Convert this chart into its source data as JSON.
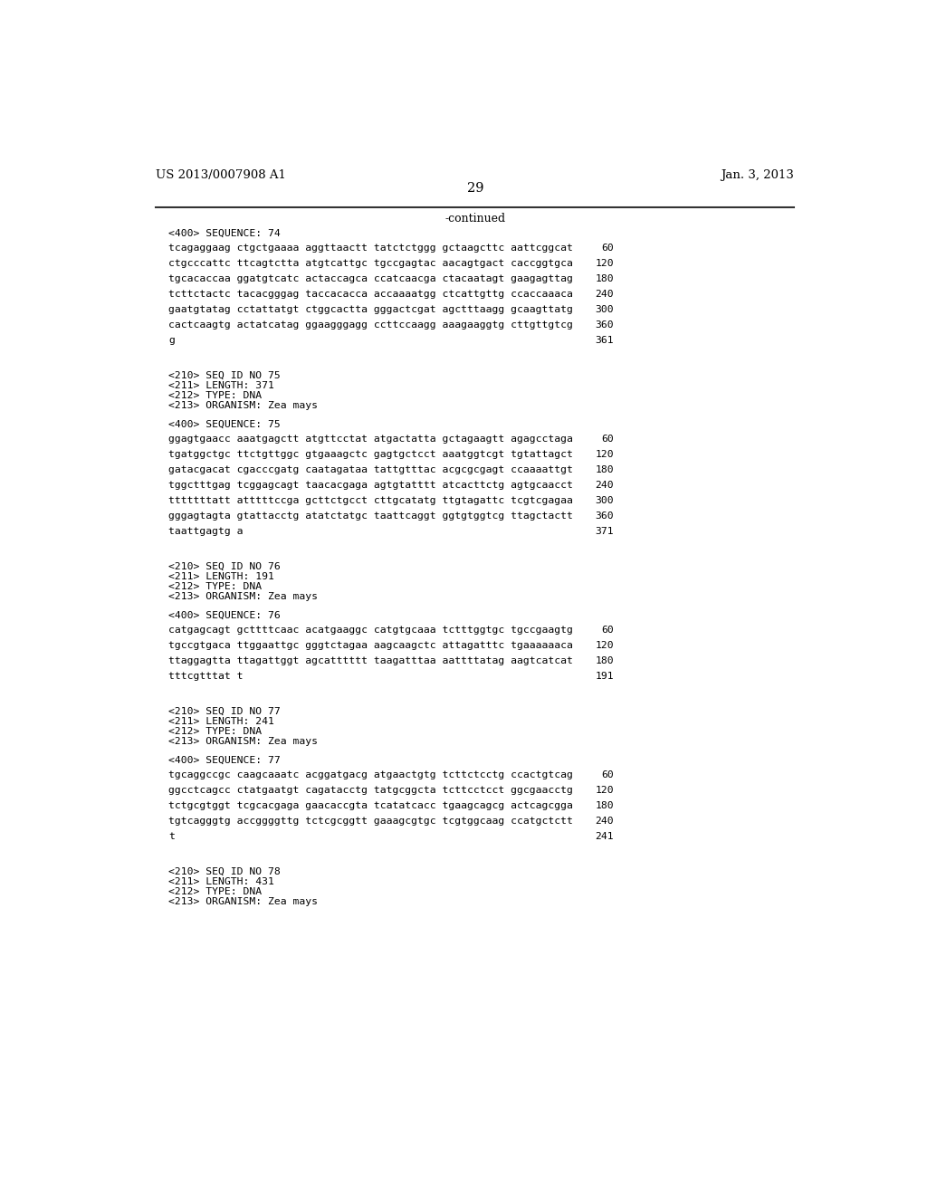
{
  "header_left": "US 2013/0007908 A1",
  "header_right": "Jan. 3, 2013",
  "page_number": "29",
  "continued_label": "-continued",
  "bg_color": "#ffffff",
  "text_color": "#000000",
  "content": [
    {
      "type": "seq_header",
      "text": "<400> SEQUENCE: 74"
    },
    {
      "type": "seq_line",
      "sequence": "tcagaggaag ctgctgaaaa aggttaactt tatctctggg gctaagcttc aattcggcat",
      "num": "60"
    },
    {
      "type": "seq_line",
      "sequence": "ctgcccattc ttcagtctta atgtcattgc tgccgagtac aacagtgact caccggtgca",
      "num": "120"
    },
    {
      "type": "seq_line",
      "sequence": "tgcacaccaa ggatgtcatc actaccagca ccatcaacga ctacaatagt gaagagttag",
      "num": "180"
    },
    {
      "type": "seq_line",
      "sequence": "tcttctactc tacacgggag taccacacca accaaaatgg ctcattgttg ccaccaaaca",
      "num": "240"
    },
    {
      "type": "seq_line",
      "sequence": "gaatgtatag cctattatgt ctggcactta gggactcgat agctttaagg gcaagttatg",
      "num": "300"
    },
    {
      "type": "seq_line",
      "sequence": "cactcaagtg actatcatag ggaagggagg ccttccaagg aaagaaggtg cttgttgtcg",
      "num": "360"
    },
    {
      "type": "seq_line",
      "sequence": "g",
      "num": "361"
    },
    {
      "type": "gap_large"
    },
    {
      "type": "meta_line",
      "text": "<210> SEQ ID NO 75"
    },
    {
      "type": "meta_line",
      "text": "<211> LENGTH: 371"
    },
    {
      "type": "meta_line",
      "text": "<212> TYPE: DNA"
    },
    {
      "type": "meta_line",
      "text": "<213> ORGANISM: Zea mays"
    },
    {
      "type": "gap_small"
    },
    {
      "type": "seq_header",
      "text": "<400> SEQUENCE: 75"
    },
    {
      "type": "seq_line",
      "sequence": "ggagtgaacc aaatgagctt atgttcctat atgactatta gctagaagtt agagcctaga",
      "num": "60"
    },
    {
      "type": "seq_line",
      "sequence": "tgatggctgc ttctgttggc gtgaaagctc gagtgctcct aaatggtcgt tgtattagct",
      "num": "120"
    },
    {
      "type": "seq_line",
      "sequence": "gatacgacat cgacccgatg caatagataa tattgtttac acgcgcgagt ccaaaattgt",
      "num": "180"
    },
    {
      "type": "seq_line",
      "sequence": "tggctttgag tcggagcagt taacacgaga agtgtatttt atcacttctg agtgcaacct",
      "num": "240"
    },
    {
      "type": "seq_line",
      "sequence": "tttttttatt atttttccga gcttctgcct cttgcatatg ttgtagattc tcgtcgagaa",
      "num": "300"
    },
    {
      "type": "seq_line",
      "sequence": "gggagtagta gtattacctg atatctatgc taattcaggt ggtgtggtcg ttagctactt",
      "num": "360"
    },
    {
      "type": "seq_line",
      "sequence": "taattgagtg a",
      "num": "371"
    },
    {
      "type": "gap_large"
    },
    {
      "type": "meta_line",
      "text": "<210> SEQ ID NO 76"
    },
    {
      "type": "meta_line",
      "text": "<211> LENGTH: 191"
    },
    {
      "type": "meta_line",
      "text": "<212> TYPE: DNA"
    },
    {
      "type": "meta_line",
      "text": "<213> ORGANISM: Zea mays"
    },
    {
      "type": "gap_small"
    },
    {
      "type": "seq_header",
      "text": "<400> SEQUENCE: 76"
    },
    {
      "type": "seq_line",
      "sequence": "catgagcagt gcttttcaac acatgaaggc catgtgcaaa tctttggtgc tgccgaagtg",
      "num": "60"
    },
    {
      "type": "seq_line",
      "sequence": "tgccgtgaca ttggaattgc gggtctagaa aagcaagctc attagatttc tgaaaaaaca",
      "num": "120"
    },
    {
      "type": "seq_line",
      "sequence": "ttaggagtta ttagattggt agcatttttt taagatttaa aattttatag aagtcatcat",
      "num": "180"
    },
    {
      "type": "seq_line",
      "sequence": "tttcgtttat t",
      "num": "191"
    },
    {
      "type": "gap_large"
    },
    {
      "type": "meta_line",
      "text": "<210> SEQ ID NO 77"
    },
    {
      "type": "meta_line",
      "text": "<211> LENGTH: 241"
    },
    {
      "type": "meta_line",
      "text": "<212> TYPE: DNA"
    },
    {
      "type": "meta_line",
      "text": "<213> ORGANISM: Zea mays"
    },
    {
      "type": "gap_small"
    },
    {
      "type": "seq_header",
      "text": "<400> SEQUENCE: 77"
    },
    {
      "type": "seq_line",
      "sequence": "tgcaggccgc caagcaaatc acggatgacg atgaactgtg tcttctcctg ccactgtcag",
      "num": "60"
    },
    {
      "type": "seq_line",
      "sequence": "ggcctcagcc ctatgaatgt cagatacctg tatgcggcta tcttcctcct ggcgaacctg",
      "num": "120"
    },
    {
      "type": "seq_line",
      "sequence": "tctgcgtggt tcgcacgaga gaacaccgta tcatatcacc tgaagcagcg actcagcgga",
      "num": "180"
    },
    {
      "type": "seq_line",
      "sequence": "tgtcagggtg accggggttg tctcgcggtt gaaagcgtgc tcgtggcaag ccatgctctt",
      "num": "240"
    },
    {
      "type": "seq_line",
      "sequence": "t",
      "num": "241"
    },
    {
      "type": "gap_large"
    },
    {
      "type": "meta_line",
      "text": "<210> SEQ ID NO 78"
    },
    {
      "type": "meta_line",
      "text": "<211> LENGTH: 431"
    },
    {
      "type": "meta_line",
      "text": "<212> TYPE: DNA"
    },
    {
      "type": "meta_line",
      "text": "<213> ORGANISM: Zea mays"
    }
  ]
}
